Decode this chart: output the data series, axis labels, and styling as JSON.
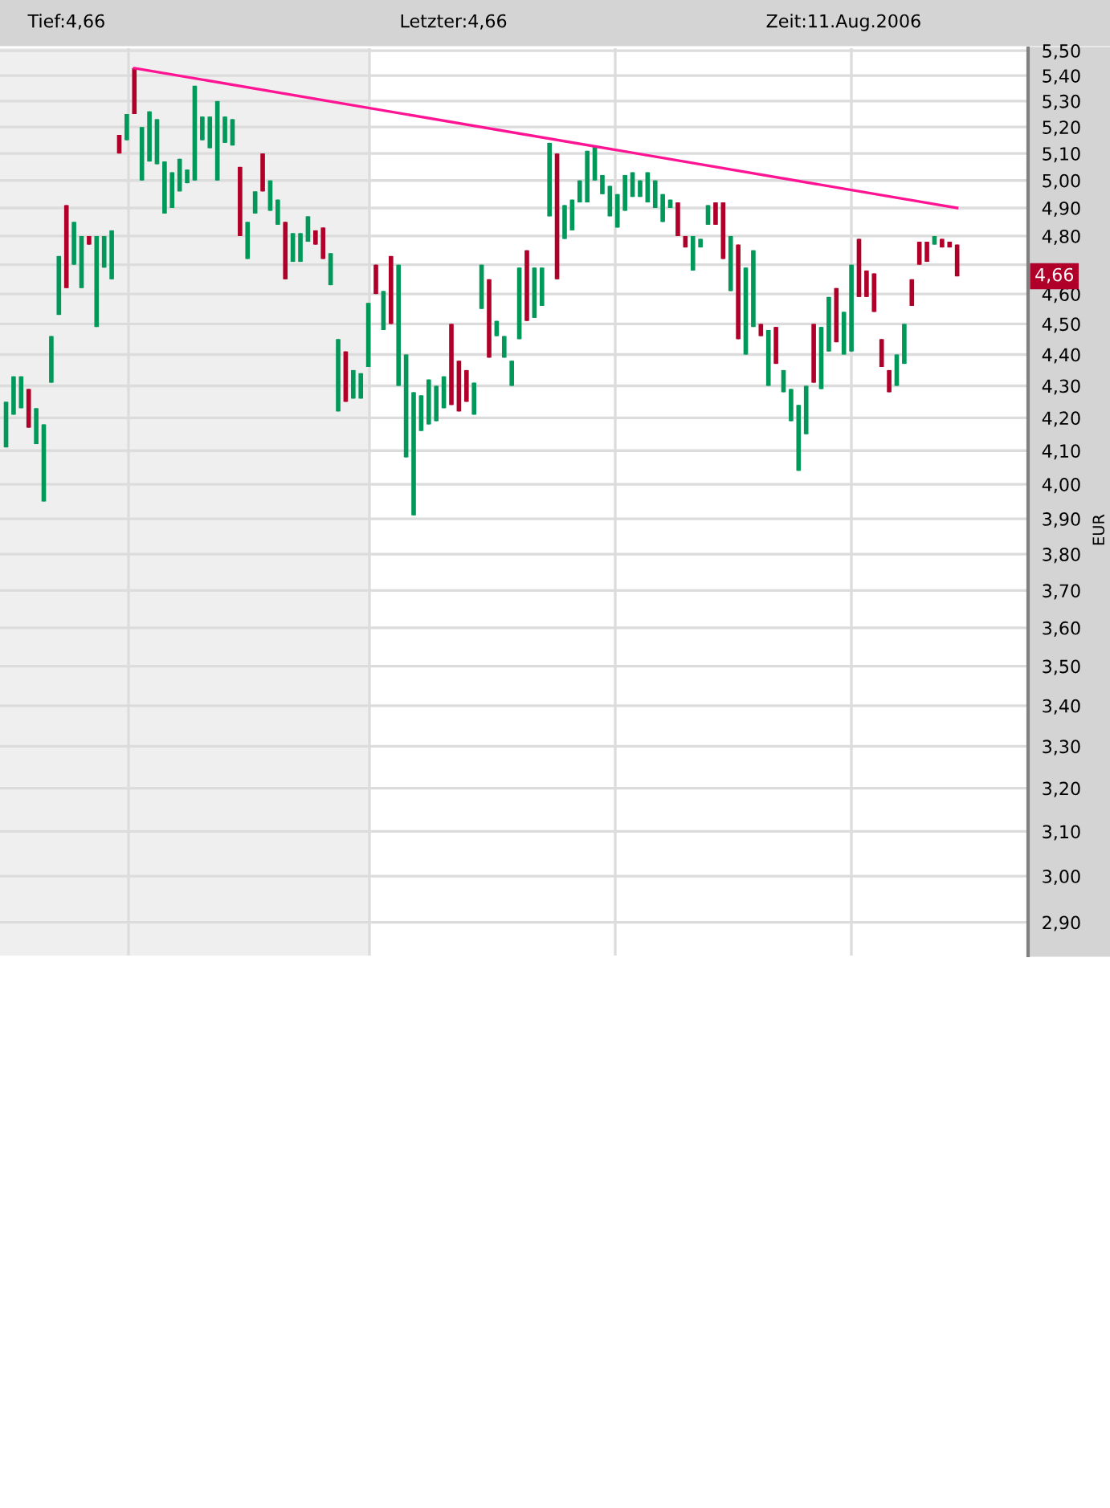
{
  "chart_data": {
    "type": "candlestick",
    "ylabel": "EUR",
    "annotations": [
      "Tief:4,66",
      "Letzter:4,66",
      "Zeit:11.Aug.2006",
      "4,66"
    ],
    "categories": [
      null,
      null,
      null,
      null,
      null,
      null,
      null,
      null,
      null,
      null,
      null,
      null,
      null,
      null,
      null,
      null,
      null,
      null,
      null,
      null,
      null,
      null,
      null,
      null,
      null,
      null,
      null,
      null,
      null,
      null,
      null,
      null,
      null,
      null,
      null,
      null,
      null,
      null,
      null,
      null,
      null,
      null,
      null,
      null,
      null,
      null,
      null,
      null,
      null,
      null,
      null,
      null,
      null,
      null,
      null,
      null,
      null,
      null,
      null,
      null,
      null,
      null,
      null,
      null,
      null,
      null,
      null,
      null,
      null,
      null,
      null,
      null,
      null,
      null,
      null,
      null,
      null,
      null,
      null,
      null,
      null,
      null,
      null,
      null,
      null,
      null,
      null,
      null,
      null,
      null,
      null,
      null,
      null,
      null,
      null,
      null,
      null,
      null,
      null,
      null,
      null,
      null,
      null,
      null,
      null,
      null,
      null,
      null,
      null,
      null,
      null,
      null,
      null,
      null,
      null,
      null,
      null,
      null,
      null,
      null,
      null,
      null,
      null,
      null,
      null,
      null,
      null
    ],
    "ohlc": [
      [
        4.11,
        4.25,
        4.11,
        4.25
      ],
      [
        4.21,
        4.33,
        4.21,
        4.33
      ],
      [
        4.23,
        4.33,
        4.23,
        4.33
      ],
      [
        4.29,
        4.29,
        4.17,
        4.17
      ],
      [
        4.12,
        4.23,
        4.12,
        4.23
      ],
      [
        3.95,
        4.18,
        3.95,
        4.18
      ],
      [
        4.31,
        4.46,
        4.31,
        4.46
      ],
      [
        4.53,
        4.73,
        4.53,
        4.73
      ],
      [
        4.91,
        4.91,
        4.62,
        4.62
      ],
      [
        4.7,
        4.85,
        4.7,
        4.85
      ],
      [
        4.62,
        4.8,
        4.62,
        4.8
      ],
      [
        4.8,
        4.8,
        4.77,
        4.77
      ],
      [
        4.49,
        4.8,
        4.49,
        4.8
      ],
      [
        4.69,
        4.8,
        4.69,
        4.8
      ],
      [
        4.65,
        4.82,
        4.65,
        4.82
      ],
      [
        5.17,
        5.17,
        5.1,
        5.1
      ],
      [
        5.15,
        5.25,
        5.15,
        5.25
      ],
      [
        5.43,
        5.43,
        5.25,
        5.25
      ],
      [
        5.0,
        5.2,
        5.0,
        5.2
      ],
      [
        5.07,
        5.26,
        5.07,
        5.26
      ],
      [
        5.06,
        5.23,
        5.06,
        5.23
      ],
      [
        4.88,
        5.07,
        4.88,
        5.07
      ],
      [
        4.9,
        5.03,
        4.9,
        5.03
      ],
      [
        4.96,
        5.08,
        4.96,
        5.08
      ],
      [
        4.99,
        5.04,
        4.99,
        5.04
      ],
      [
        5.0,
        5.36,
        5.0,
        5.36
      ],
      [
        5.15,
        5.24,
        5.15,
        5.24
      ],
      [
        5.12,
        5.24,
        5.12,
        5.24
      ],
      [
        5.0,
        5.3,
        5.0,
        5.3
      ],
      [
        5.14,
        5.24,
        5.14,
        5.24
      ],
      [
        5.13,
        5.23,
        5.13,
        5.23
      ],
      [
        5.05,
        5.05,
        4.8,
        4.8
      ],
      [
        4.72,
        4.85,
        4.72,
        4.85
      ],
      [
        4.88,
        4.96,
        4.88,
        4.96
      ],
      [
        5.1,
        5.1,
        4.96,
        4.96
      ],
      [
        4.89,
        5.0,
        4.89,
        5.0
      ],
      [
        4.84,
        4.93,
        4.84,
        4.93
      ],
      [
        4.85,
        4.85,
        4.65,
        4.65
      ],
      [
        4.71,
        4.81,
        4.71,
        4.81
      ],
      [
        4.71,
        4.81,
        4.71,
        4.81
      ],
      [
        4.78,
        4.87,
        4.78,
        4.87
      ],
      [
        4.82,
        4.82,
        4.77,
        4.77
      ],
      [
        4.83,
        4.83,
        4.72,
        4.72
      ],
      [
        4.63,
        4.74,
        4.63,
        4.74
      ],
      [
        4.22,
        4.45,
        4.22,
        4.45
      ],
      [
        4.41,
        4.41,
        4.25,
        4.25
      ],
      [
        4.26,
        4.35,
        4.26,
        4.35
      ],
      [
        4.26,
        4.34,
        4.26,
        4.34
      ],
      [
        4.36,
        4.57,
        4.36,
        4.57
      ],
      [
        4.7,
        4.7,
        4.6,
        4.6
      ],
      [
        4.48,
        4.61,
        4.48,
        4.61
      ],
      [
        4.73,
        4.73,
        4.5,
        4.5
      ],
      [
        4.3,
        4.7,
        4.3,
        4.7
      ],
      [
        4.08,
        4.4,
        4.08,
        4.4
      ],
      [
        3.91,
        4.28,
        3.91,
        4.28
      ],
      [
        4.16,
        4.27,
        4.16,
        4.27
      ],
      [
        4.18,
        4.32,
        4.18,
        4.32
      ],
      [
        4.19,
        4.3,
        4.19,
        4.3
      ],
      [
        4.23,
        4.33,
        4.23,
        4.33
      ],
      [
        4.5,
        4.5,
        4.24,
        4.24
      ],
      [
        4.38,
        4.38,
        4.22,
        4.22
      ],
      [
        4.35,
        4.35,
        4.25,
        4.25
      ],
      [
        4.21,
        4.31,
        4.21,
        4.31
      ],
      [
        4.55,
        4.7,
        4.55,
        4.7
      ],
      [
        4.65,
        4.65,
        4.39,
        4.39
      ],
      [
        4.46,
        4.51,
        4.46,
        4.51
      ],
      [
        4.39,
        4.46,
        4.39,
        4.46
      ],
      [
        4.3,
        4.38,
        4.3,
        4.38
      ],
      [
        4.45,
        4.69,
        4.45,
        4.69
      ],
      [
        4.75,
        4.75,
        4.51,
        4.51
      ],
      [
        4.52,
        4.69,
        4.52,
        4.69
      ],
      [
        4.56,
        4.69,
        4.56,
        4.69
      ],
      [
        4.87,
        5.14,
        4.87,
        5.14
      ],
      [
        5.1,
        5.1,
        4.65,
        4.65
      ],
      [
        4.79,
        4.91,
        4.79,
        4.91
      ],
      [
        4.82,
        4.93,
        4.82,
        4.93
      ],
      [
        4.92,
        5.0,
        4.92,
        5.0
      ],
      [
        4.92,
        5.11,
        4.92,
        5.11
      ],
      [
        5.0,
        5.13,
        5.0,
        5.13
      ],
      [
        4.95,
        5.02,
        4.95,
        5.02
      ],
      [
        4.87,
        4.98,
        4.87,
        4.98
      ],
      [
        4.83,
        4.95,
        4.83,
        4.95
      ],
      [
        4.89,
        5.02,
        4.89,
        5.02
      ],
      [
        4.94,
        5.03,
        4.94,
        5.03
      ],
      [
        4.94,
        5.0,
        4.94,
        5.0
      ],
      [
        4.92,
        5.03,
        4.92,
        5.03
      ],
      [
        4.9,
        5.0,
        4.9,
        5.0
      ],
      [
        4.85,
        4.95,
        4.85,
        4.95
      ],
      [
        4.9,
        4.93,
        4.9,
        4.93
      ],
      [
        4.92,
        4.92,
        4.8,
        4.8
      ],
      [
        4.8,
        4.8,
        4.76,
        4.76
      ],
      [
        4.68,
        4.8,
        4.68,
        4.8
      ],
      [
        4.76,
        4.79,
        4.76,
        4.79
      ],
      [
        4.84,
        4.91,
        4.84,
        4.91
      ],
      [
        4.92,
        4.92,
        4.84,
        4.84
      ],
      [
        4.92,
        4.92,
        4.72,
        4.72
      ],
      [
        4.61,
        4.8,
        4.61,
        4.8
      ],
      [
        4.77,
        4.77,
        4.45,
        4.45
      ],
      [
        4.4,
        4.69,
        4.4,
        4.69
      ],
      [
        4.49,
        4.75,
        4.49,
        4.75
      ],
      [
        4.5,
        4.5,
        4.46,
        4.46
      ],
      [
        4.3,
        4.48,
        4.3,
        4.48
      ],
      [
        4.49,
        4.49,
        4.37,
        4.37
      ],
      [
        4.28,
        4.35,
        4.28,
        4.35
      ],
      [
        4.19,
        4.29,
        4.19,
        4.29
      ],
      [
        4.04,
        4.24,
        4.04,
        4.24
      ],
      [
        4.15,
        4.3,
        4.15,
        4.3
      ],
      [
        4.5,
        4.5,
        4.31,
        4.31
      ],
      [
        4.29,
        4.49,
        4.29,
        4.49
      ],
      [
        4.41,
        4.59,
        4.41,
        4.59
      ],
      [
        4.62,
        4.62,
        4.44,
        4.44
      ],
      [
        4.4,
        4.54,
        4.4,
        4.54
      ],
      [
        4.41,
        4.7,
        4.41,
        4.7
      ],
      [
        4.79,
        4.79,
        4.59,
        4.59
      ],
      [
        4.68,
        4.68,
        4.59,
        4.59
      ],
      [
        4.67,
        4.67,
        4.54,
        4.54
      ],
      [
        4.45,
        4.45,
        4.36,
        4.36
      ],
      [
        4.35,
        4.35,
        4.28,
        4.28
      ],
      [
        4.3,
        4.4,
        4.3,
        4.4
      ],
      [
        4.37,
        4.5,
        4.37,
        4.5
      ],
      [
        4.65,
        4.65,
        4.56,
        4.56
      ],
      [
        4.78,
        4.78,
        4.7,
        4.7
      ],
      [
        4.78,
        4.78,
        4.71,
        4.71
      ],
      [
        4.77,
        4.8,
        4.77,
        4.8
      ],
      [
        4.79,
        4.79,
        4.76,
        4.76
      ],
      [
        4.78,
        4.78,
        4.76,
        4.76
      ],
      [
        4.77,
        4.77,
        4.66,
        4.66
      ]
    ],
    "series": [
      {
        "type": "line",
        "color": "#ff1493",
        "values": [
          null,
          null,
          null,
          null,
          null,
          null,
          null,
          null,
          null,
          null,
          null,
          null,
          null,
          null,
          null,
          null,
          null,
          5.43,
          null,
          null,
          null,
          null,
          null,
          null,
          null,
          null,
          null,
          null,
          null,
          null,
          null,
          null,
          null,
          null,
          null,
          null,
          null,
          null,
          null,
          null,
          null,
          null,
          null,
          null,
          null,
          null,
          null,
          null,
          null,
          null,
          null,
          null,
          null,
          null,
          null,
          null,
          null,
          null,
          null,
          null,
          null,
          null,
          null,
          null,
          null,
          null,
          null,
          null,
          null,
          null,
          null,
          null,
          null,
          null,
          null,
          null,
          null,
          null,
          null,
          null,
          null,
          null,
          null,
          null,
          null,
          null,
          null,
          null,
          null,
          null,
          null,
          null,
          null,
          null,
          null,
          null,
          null,
          null,
          null,
          null,
          null,
          null,
          null,
          null,
          null,
          null,
          null,
          null,
          null,
          null,
          null,
          null,
          null,
          null,
          null,
          null,
          null,
          null,
          null,
          null,
          null,
          null,
          null,
          null,
          null,
          null,
          4.9
        ]
      }
    ],
    "log": "y",
    "grid": "y",
    "tick_labels": "y",
    "ylim": [
      2.83,
      5.51
    ],
    "yticks": [
      {
        "value": 2.9,
        "label": "2,90"
      },
      {
        "value": 3.0,
        "label": "3,00"
      },
      {
        "value": 3.1,
        "label": "3,10"
      },
      {
        "value": 3.2,
        "label": "3,20"
      },
      {
        "value": 3.3,
        "label": "3,30"
      },
      {
        "value": 3.4,
        "label": "3,40"
      },
      {
        "value": 3.5,
        "label": "3,50"
      },
      {
        "value": 3.6,
        "label": "3,60"
      },
      {
        "value": 3.7,
        "label": "3,70"
      },
      {
        "value": 3.8,
        "label": "3,80"
      },
      {
        "value": 3.9,
        "label": "3,90"
      },
      {
        "value": 4.0,
        "label": "4,00"
      },
      {
        "value": 4.1,
        "label": "4,10"
      },
      {
        "value": 4.2,
        "label": "4,20"
      },
      {
        "value": 4.3,
        "label": "4,30"
      },
      {
        "value": 4.4,
        "label": "4,40"
      },
      {
        "value": 4.5,
        "label": "4,50"
      },
      {
        "value": 4.6,
        "label": "4,60"
      },
      {
        "value": 4.7,
        "label": null
      },
      {
        "value": 4.8,
        "label": "4,80"
      },
      {
        "value": 4.9,
        "label": "4,90"
      },
      {
        "value": 5.0,
        "label": "5,00"
      },
      {
        "value": 5.1,
        "label": "5,10"
      },
      {
        "value": 5.2,
        "label": "5,20"
      },
      {
        "value": 5.3,
        "label": "5,30"
      },
      {
        "value": 5.4,
        "label": "5,40"
      },
      {
        "value": 5.5,
        "label": "5,50"
      }
    ]
  }
}
